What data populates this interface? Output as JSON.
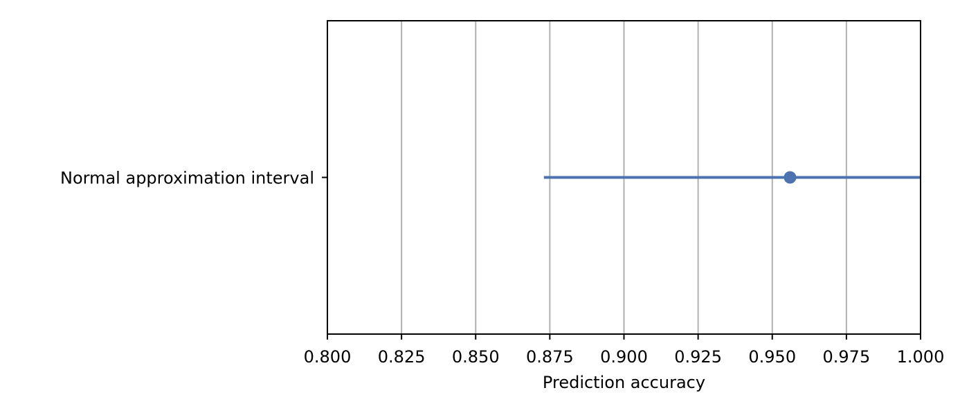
{
  "chart_data": {
    "type": "scatter",
    "xlabel": "Prediction accuracy",
    "ylabel": "",
    "xlim": [
      0.8,
      1.0
    ],
    "xticks": [
      0.8,
      0.825,
      0.85,
      0.875,
      0.9,
      0.925,
      0.95,
      0.975,
      1.0
    ],
    "xtick_labels": [
      "0.800",
      "0.825",
      "0.850",
      "0.875",
      "0.900",
      "0.925",
      "0.950",
      "0.975",
      "1.000"
    ],
    "grid": "vertical",
    "categories": [
      "Normal approximation interval"
    ],
    "points": [
      {
        "category": "Normal approximation interval",
        "value": 0.956,
        "lower": 0.873,
        "upper": 1.0
      }
    ],
    "colors": {
      "series": "#4c72b0",
      "grid": "#b0b0b0",
      "axis": "#000000"
    }
  }
}
